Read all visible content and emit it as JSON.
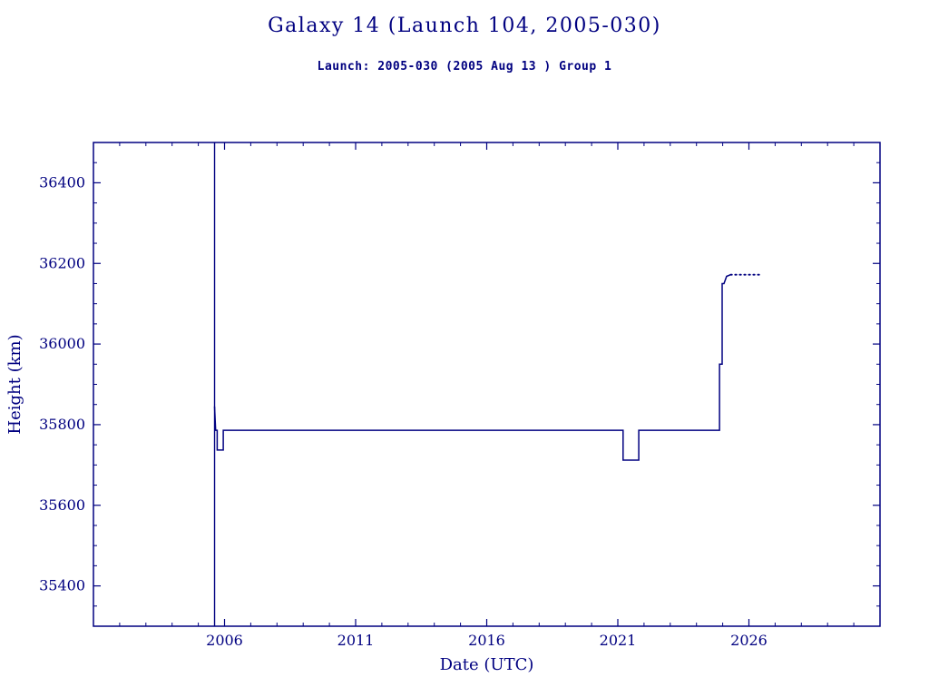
{
  "chart_data": {
    "type": "line",
    "title": "Galaxy 14 (Launch 104, 2005-030)",
    "subtitle": "Launch: 2005-030  (2005 Aug 13 )  Group 1",
    "xlabel": "Date (UTC)",
    "ylabel": "Height (km)",
    "xlim": [
      2001,
      2031
    ],
    "ylim": [
      35300,
      36500
    ],
    "xticks": [
      2006,
      2011,
      2016,
      2021,
      2026
    ],
    "yticks": [
      35400,
      35600,
      35800,
      36000,
      36200,
      36400
    ],
    "x_minor_step": 1,
    "y_minor_step": 50,
    "grid": false,
    "legend": "none",
    "line_color": "#000080",
    "launch_epoch_x": 2005.62,
    "series": [
      {
        "name": "height-km",
        "style": "solid",
        "points": [
          [
            2005.62,
            35845
          ],
          [
            2005.66,
            35786
          ],
          [
            2005.72,
            35786
          ],
          [
            2005.72,
            35737
          ],
          [
            2005.95,
            35737
          ],
          [
            2005.95,
            35786
          ],
          [
            2021.2,
            35786
          ],
          [
            2021.2,
            35712
          ],
          [
            2021.8,
            35712
          ],
          [
            2021.8,
            35786
          ],
          [
            2024.88,
            35786
          ],
          [
            2024.88,
            35950
          ],
          [
            2024.98,
            35950
          ],
          [
            2024.98,
            36150
          ],
          [
            2025.05,
            36150
          ],
          [
            2025.15,
            36168
          ],
          [
            2025.3,
            36172
          ]
        ]
      },
      {
        "name": "height-km-recent",
        "style": "dotted",
        "points": [
          [
            2025.3,
            36172
          ],
          [
            2026.45,
            36172
          ]
        ]
      }
    ]
  }
}
